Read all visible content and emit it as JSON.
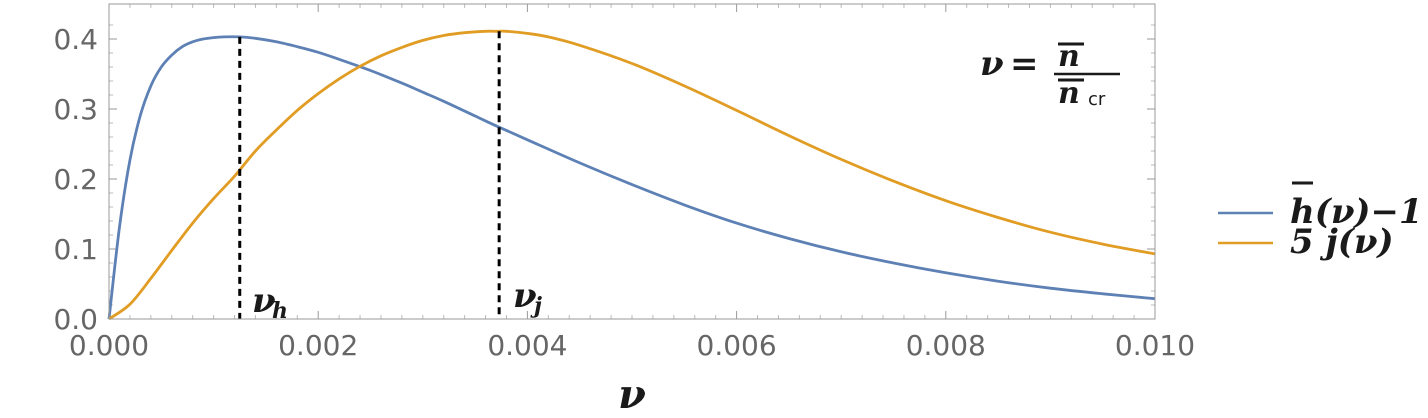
{
  "chart_data": {
    "type": "line",
    "xlabel": "ν",
    "ylabel": "",
    "xlim": [
      0,
      0.01
    ],
    "ylim": [
      0,
      0.45
    ],
    "xticks": [
      0,
      0.002,
      0.004,
      0.006,
      0.008,
      0.01
    ],
    "xtick_labels": [
      "0.000",
      "0.002",
      "0.004",
      "0.006",
      "0.008",
      "0.010"
    ],
    "yticks": [
      0,
      0.1,
      0.2,
      0.3,
      0.4
    ],
    "ytick_labels": [
      "0.0",
      "0.1",
      "0.2",
      "0.3",
      "0.4"
    ],
    "grid": false,
    "legend_position": "right",
    "series": [
      {
        "legend_main": "h",
        "legend_rest": "(ν)−1",
        "color": "#5E81B5",
        "x": [
          0,
          0.0001,
          0.0002,
          0.0003,
          0.0004,
          0.0005,
          0.0006,
          0.0007,
          0.0008,
          0.0009,
          0.001,
          0.0011,
          0.00125,
          0.0014,
          0.0016,
          0.0018,
          0.002,
          0.0022,
          0.0025,
          0.0028,
          0.003,
          0.0032,
          0.0035,
          0.0037,
          0.004,
          0.0045,
          0.005,
          0.0055,
          0.006,
          0.0065,
          0.007,
          0.0075,
          0.008,
          0.0085,
          0.009,
          0.0095,
          0.01
        ],
        "y": [
          0,
          0.131,
          0.227,
          0.291,
          0.333,
          0.36,
          0.377,
          0.389,
          0.396,
          0.4,
          0.402,
          0.403,
          0.403,
          0.401,
          0.396,
          0.389,
          0.381,
          0.371,
          0.355,
          0.337,
          0.324,
          0.311,
          0.29,
          0.276,
          0.256,
          0.223,
          0.192,
          0.163,
          0.137,
          0.115,
          0.096,
          0.08,
          0.066,
          0.054,
          0.044,
          0.036,
          0.029
        ]
      },
      {
        "legend_main": "5 j",
        "legend_rest": "(ν)",
        "color": "#E19C24",
        "x": [
          0,
          0.0002,
          0.0004,
          0.0006,
          0.0008,
          0.001,
          0.0012,
          0.0014,
          0.0016,
          0.0018,
          0.002,
          0.0022,
          0.0024,
          0.0026,
          0.0028,
          0.003,
          0.0032,
          0.0034,
          0.0036,
          0.0037,
          0.0038,
          0.004,
          0.0042,
          0.0045,
          0.005,
          0.0055,
          0.006,
          0.0065,
          0.007,
          0.0075,
          0.008,
          0.0085,
          0.009,
          0.0095,
          0.01
        ],
        "y": [
          0,
          0.021,
          0.058,
          0.098,
          0.137,
          0.172,
          0.204,
          0.24,
          0.27,
          0.298,
          0.322,
          0.343,
          0.361,
          0.376,
          0.388,
          0.398,
          0.405,
          0.409,
          0.411,
          0.411,
          0.411,
          0.408,
          0.403,
          0.391,
          0.365,
          0.333,
          0.298,
          0.262,
          0.228,
          0.197,
          0.169,
          0.145,
          0.124,
          0.107,
          0.093
        ]
      }
    ],
    "annotations": {
      "nu_h": {
        "x": 0.00125,
        "y_top": 0.403,
        "label": "ν",
        "sub": "h"
      },
      "nu_j": {
        "x": 0.00373,
        "y_top": 0.411,
        "label": "ν",
        "sub": "j"
      },
      "definition": {
        "lhs": "ν",
        "eq": "=",
        "num": "n",
        "den": "n",
        "den_sub": "cr"
      }
    }
  }
}
